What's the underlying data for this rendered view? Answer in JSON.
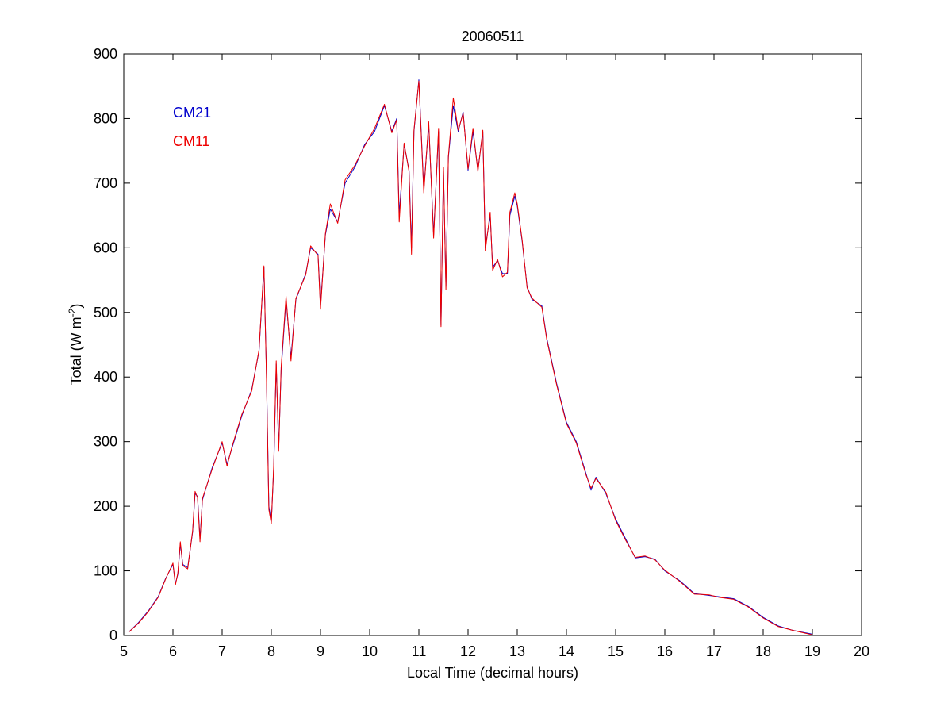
{
  "chart_data": {
    "type": "line",
    "title": "20060511",
    "xlabel": "Local Time (decimal hours)",
    "ylabel_main": "Total (W m",
    "ylabel_sup": "-2",
    "ylabel_close": ")",
    "xlim": [
      5,
      20
    ],
    "ylim": [
      0,
      900
    ],
    "xticks": [
      5,
      6,
      7,
      8,
      9,
      10,
      11,
      12,
      13,
      14,
      15,
      16,
      17,
      18,
      19,
      20
    ],
    "yticks": [
      0,
      100,
      200,
      300,
      400,
      500,
      600,
      700,
      800,
      900
    ],
    "grid": false,
    "legend_position": "top-left",
    "series": [
      {
        "name": "CM21",
        "color": "#0000cc",
        "points": [
          [
            5.1,
            5
          ],
          [
            5.3,
            20
          ],
          [
            5.5,
            38
          ],
          [
            5.7,
            60
          ],
          [
            5.85,
            88
          ],
          [
            6.0,
            110
          ],
          [
            6.05,
            80
          ],
          [
            6.1,
            95
          ],
          [
            6.15,
            142
          ],
          [
            6.2,
            110
          ],
          [
            6.3,
            105
          ],
          [
            6.4,
            160
          ],
          [
            6.45,
            220
          ],
          [
            6.5,
            215
          ],
          [
            6.55,
            150
          ],
          [
            6.6,
            210
          ],
          [
            6.8,
            260
          ],
          [
            7.0,
            298
          ],
          [
            7.1,
            265
          ],
          [
            7.2,
            290
          ],
          [
            7.4,
            340
          ],
          [
            7.6,
            380
          ],
          [
            7.75,
            440
          ],
          [
            7.85,
            570
          ],
          [
            7.9,
            410
          ],
          [
            7.95,
            200
          ],
          [
            8.0,
            175
          ],
          [
            8.05,
            260
          ],
          [
            8.1,
            420
          ],
          [
            8.15,
            290
          ],
          [
            8.2,
            410
          ],
          [
            8.3,
            520
          ],
          [
            8.4,
            430
          ],
          [
            8.5,
            520
          ],
          [
            8.7,
            560
          ],
          [
            8.8,
            600
          ],
          [
            8.95,
            590
          ],
          [
            9.0,
            510
          ],
          [
            9.1,
            620
          ],
          [
            9.2,
            660
          ],
          [
            9.35,
            640
          ],
          [
            9.5,
            700
          ],
          [
            9.7,
            725
          ],
          [
            9.9,
            760
          ],
          [
            10.1,
            780
          ],
          [
            10.3,
            820
          ],
          [
            10.45,
            780
          ],
          [
            10.55,
            800
          ],
          [
            10.6,
            650
          ],
          [
            10.7,
            760
          ],
          [
            10.8,
            720
          ],
          [
            10.85,
            600
          ],
          [
            10.9,
            780
          ],
          [
            11.0,
            860
          ],
          [
            11.1,
            690
          ],
          [
            11.2,
            790
          ],
          [
            11.3,
            620
          ],
          [
            11.4,
            780
          ],
          [
            11.45,
            480
          ],
          [
            11.5,
            720
          ],
          [
            11.55,
            540
          ],
          [
            11.6,
            740
          ],
          [
            11.7,
            820
          ],
          [
            11.8,
            780
          ],
          [
            11.9,
            810
          ],
          [
            12.0,
            720
          ],
          [
            12.1,
            780
          ],
          [
            12.2,
            720
          ],
          [
            12.3,
            780
          ],
          [
            12.35,
            600
          ],
          [
            12.45,
            650
          ],
          [
            12.5,
            570
          ],
          [
            12.6,
            580
          ],
          [
            12.7,
            560
          ],
          [
            12.8,
            560
          ],
          [
            12.85,
            650
          ],
          [
            12.95,
            680
          ],
          [
            13.0,
            665
          ],
          [
            13.1,
            610
          ],
          [
            13.2,
            540
          ],
          [
            13.3,
            520
          ],
          [
            13.5,
            510
          ],
          [
            13.6,
            460
          ],
          [
            13.8,
            390
          ],
          [
            14.0,
            330
          ],
          [
            14.2,
            300
          ],
          [
            14.4,
            250
          ],
          [
            14.5,
            225
          ],
          [
            14.6,
            245
          ],
          [
            14.8,
            220
          ],
          [
            15.0,
            180
          ],
          [
            15.2,
            150
          ],
          [
            15.4,
            120
          ],
          [
            15.6,
            122
          ],
          [
            15.8,
            118
          ],
          [
            16.0,
            100
          ],
          [
            16.3,
            85
          ],
          [
            16.6,
            65
          ],
          [
            16.9,
            62
          ],
          [
            17.1,
            60
          ],
          [
            17.4,
            57
          ],
          [
            17.7,
            45
          ],
          [
            18.0,
            28
          ],
          [
            18.3,
            15
          ],
          [
            18.6,
            8
          ],
          [
            19.0,
            2
          ]
        ]
      },
      {
        "name": "CM11",
        "color": "#ee0000",
        "points": [
          [
            5.1,
            5
          ],
          [
            5.3,
            19
          ],
          [
            5.5,
            37
          ],
          [
            5.7,
            59
          ],
          [
            5.85,
            87
          ],
          [
            6.0,
            112
          ],
          [
            6.05,
            78
          ],
          [
            6.1,
            97
          ],
          [
            6.15,
            145
          ],
          [
            6.2,
            108
          ],
          [
            6.3,
            103
          ],
          [
            6.4,
            162
          ],
          [
            6.45,
            223
          ],
          [
            6.5,
            213
          ],
          [
            6.55,
            145
          ],
          [
            6.6,
            212
          ],
          [
            6.8,
            258
          ],
          [
            7.0,
            300
          ],
          [
            7.1,
            262
          ],
          [
            7.2,
            292
          ],
          [
            7.4,
            342
          ],
          [
            7.6,
            378
          ],
          [
            7.75,
            442
          ],
          [
            7.85,
            572
          ],
          [
            7.9,
            405
          ],
          [
            7.95,
            195
          ],
          [
            8.0,
            173
          ],
          [
            8.05,
            265
          ],
          [
            8.1,
            425
          ],
          [
            8.15,
            285
          ],
          [
            8.2,
            415
          ],
          [
            8.3,
            525
          ],
          [
            8.4,
            425
          ],
          [
            8.5,
            522
          ],
          [
            8.7,
            558
          ],
          [
            8.8,
            603
          ],
          [
            8.95,
            588
          ],
          [
            9.0,
            505
          ],
          [
            9.1,
            622
          ],
          [
            9.2,
            668
          ],
          [
            9.35,
            638
          ],
          [
            9.5,
            705
          ],
          [
            9.7,
            728
          ],
          [
            9.9,
            758
          ],
          [
            10.1,
            785
          ],
          [
            10.3,
            822
          ],
          [
            10.45,
            778
          ],
          [
            10.55,
            798
          ],
          [
            10.6,
            640
          ],
          [
            10.7,
            762
          ],
          [
            10.8,
            718
          ],
          [
            10.85,
            590
          ],
          [
            10.9,
            782
          ],
          [
            11.0,
            858
          ],
          [
            11.1,
            685
          ],
          [
            11.2,
            795
          ],
          [
            11.3,
            615
          ],
          [
            11.4,
            785
          ],
          [
            11.45,
            478
          ],
          [
            11.5,
            725
          ],
          [
            11.55,
            535
          ],
          [
            11.6,
            742
          ],
          [
            11.7,
            832
          ],
          [
            11.8,
            782
          ],
          [
            11.9,
            808
          ],
          [
            12.0,
            722
          ],
          [
            12.1,
            785
          ],
          [
            12.2,
            718
          ],
          [
            12.3,
            782
          ],
          [
            12.35,
            595
          ],
          [
            12.45,
            655
          ],
          [
            12.5,
            565
          ],
          [
            12.6,
            582
          ],
          [
            12.7,
            555
          ],
          [
            12.8,
            562
          ],
          [
            12.85,
            655
          ],
          [
            12.95,
            685
          ],
          [
            13.0,
            668
          ],
          [
            13.1,
            612
          ],
          [
            13.2,
            538
          ],
          [
            13.3,
            522
          ],
          [
            13.5,
            508
          ],
          [
            13.6,
            458
          ],
          [
            13.8,
            388
          ],
          [
            14.0,
            328
          ],
          [
            14.2,
            298
          ],
          [
            14.4,
            248
          ],
          [
            14.5,
            228
          ],
          [
            14.6,
            243
          ],
          [
            14.8,
            222
          ],
          [
            15.0,
            178
          ],
          [
            15.2,
            148
          ],
          [
            15.4,
            121
          ],
          [
            15.6,
            123
          ],
          [
            15.8,
            117
          ],
          [
            16.0,
            101
          ],
          [
            16.3,
            84
          ],
          [
            16.6,
            64
          ],
          [
            16.9,
            63
          ],
          [
            17.1,
            59
          ],
          [
            17.4,
            56
          ],
          [
            17.7,
            44
          ],
          [
            18.0,
            27
          ],
          [
            18.3,
            14
          ],
          [
            18.6,
            8
          ],
          [
            19.0,
            1
          ]
        ]
      }
    ]
  }
}
